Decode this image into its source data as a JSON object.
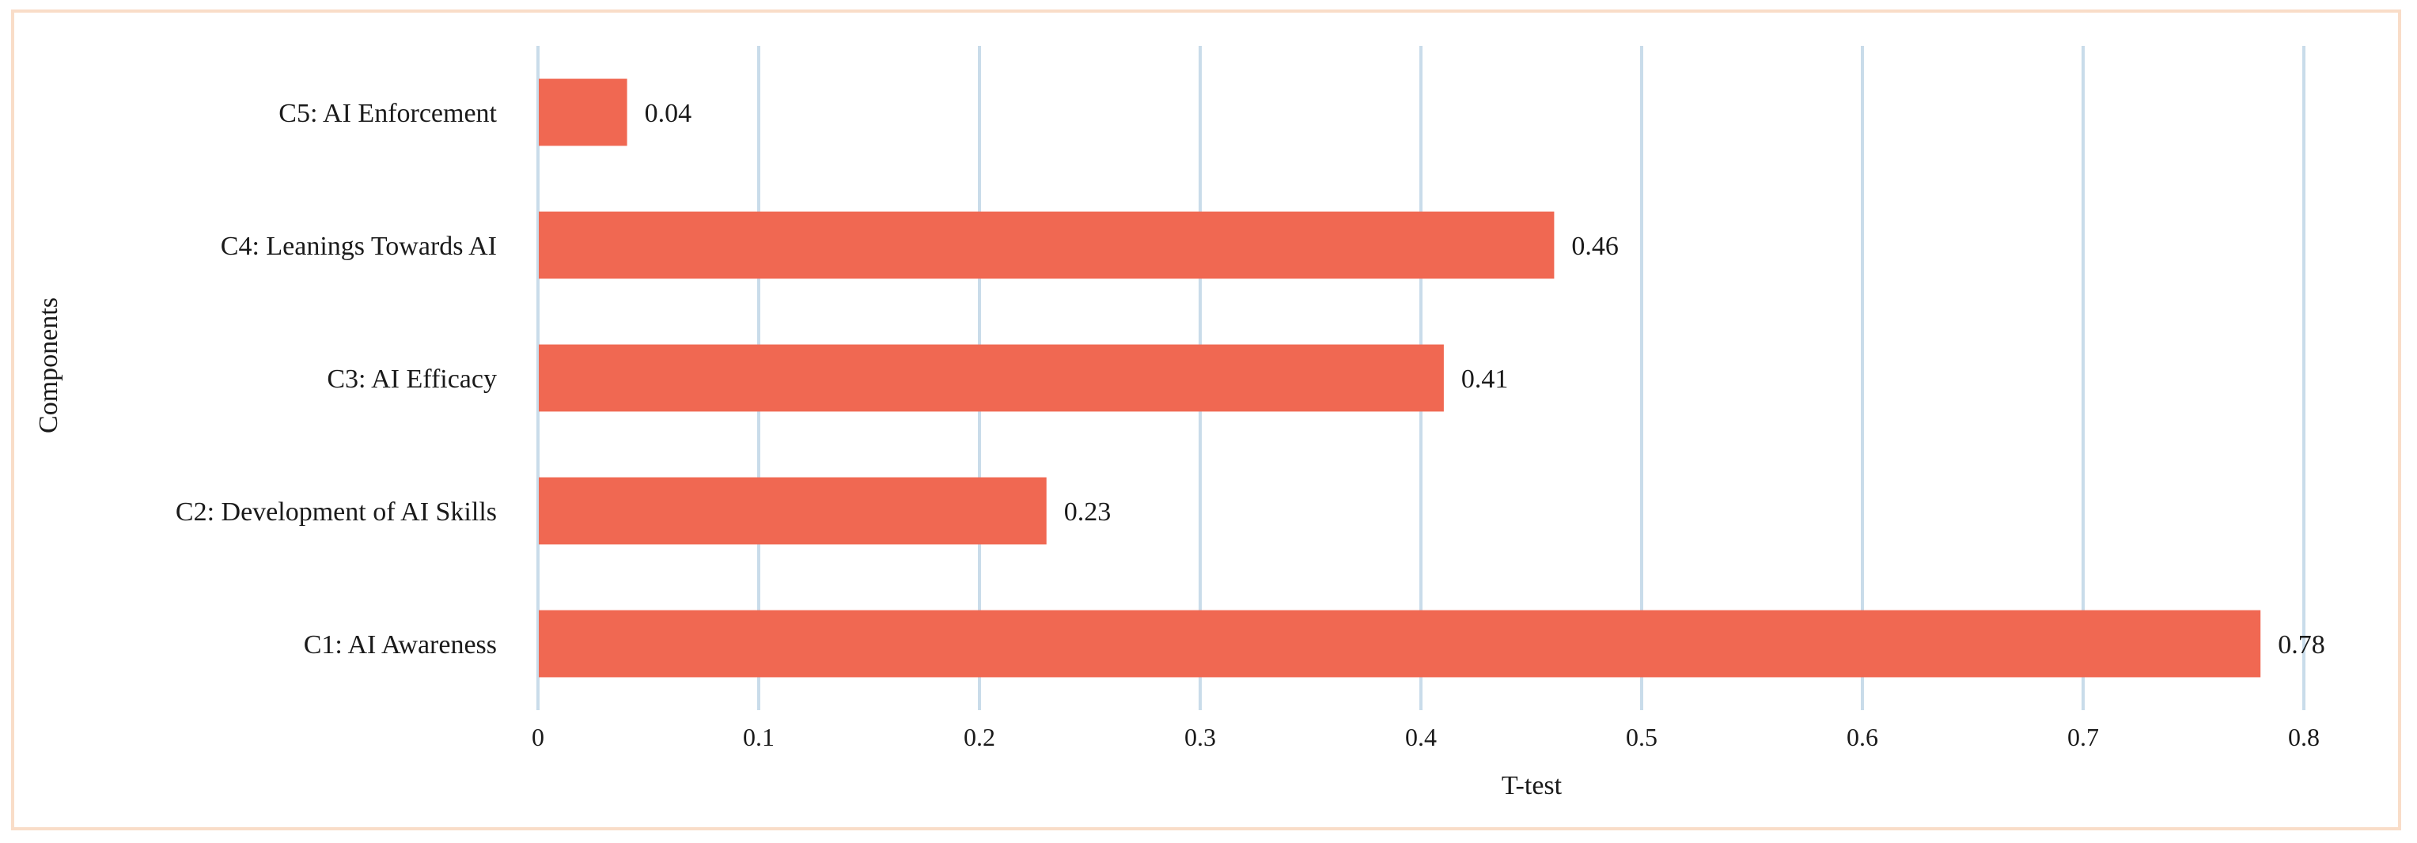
{
  "chart_data": {
    "type": "bar",
    "orientation": "horizontal",
    "categories": [
      "C1: AI Awareness",
      "C2: Development of AI Skills",
      "C3: AI Efficacy",
      "C4: Leanings Towards AI",
      "C5: AI Enforcement"
    ],
    "values": [
      0.78,
      0.23,
      0.41,
      0.46,
      0.04
    ],
    "value_labels": [
      "0.78",
      "0.23",
      "0.41",
      "0.46",
      "0.04"
    ],
    "xlabel": "T-test",
    "ylabel": "Components",
    "xlim": [
      0,
      0.8
    ],
    "xticks": [
      "0",
      "0.1",
      "0.2",
      "0.3",
      "0.4",
      "0.5",
      "0.6",
      "0.7",
      "0.8"
    ],
    "grid": "vertical",
    "legend": "none",
    "bar_color": "#f06852",
    "grid_color": "#c9dcea",
    "frame_color": "#f9ddc8"
  }
}
